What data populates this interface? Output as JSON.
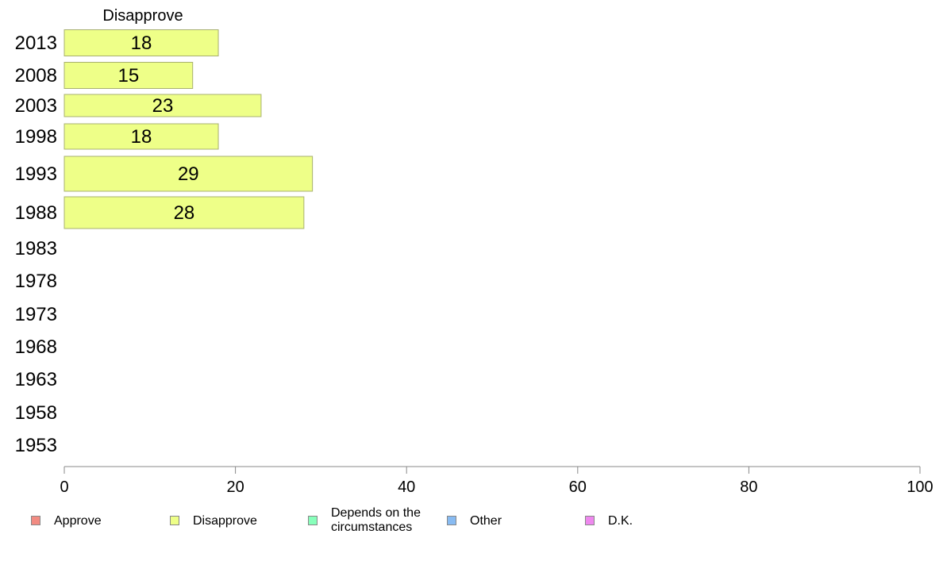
{
  "chart_data": {
    "type": "bar",
    "orientation": "horizontal",
    "stacked": true,
    "categories": [
      "2013",
      "2008",
      "2003",
      "1998",
      "1993",
      "1988",
      "1983",
      "1978",
      "1973",
      "1968",
      "1963",
      "1958",
      "1953"
    ],
    "series": [
      {
        "name": "Approve",
        "color": "#f28b82",
        "values": [
          null,
          null,
          null,
          null,
          null,
          null,
          null,
          null,
          null,
          null,
          null,
          null,
          null
        ]
      },
      {
        "name": "Disapprove",
        "color": "#eeff88",
        "values": [
          18,
          15,
          23,
          18,
          29,
          28,
          null,
          null,
          null,
          null,
          null,
          null,
          null
        ]
      },
      {
        "name": "Depends on the circumstances",
        "color": "#88ffbb",
        "values": [
          null,
          null,
          null,
          null,
          null,
          null,
          null,
          null,
          null,
          null,
          null,
          null,
          null
        ]
      },
      {
        "name": "Other",
        "color": "#88bbf2",
        "values": [
          null,
          null,
          null,
          null,
          null,
          null,
          null,
          null,
          null,
          null,
          null,
          null,
          null
        ]
      },
      {
        "name": "D.K.",
        "color": "#ee88ee",
        "values": [
          null,
          null,
          null,
          null,
          null,
          null,
          null,
          null,
          null,
          null,
          null,
          null,
          null
        ]
      }
    ],
    "column_header": "Disapprove",
    "xlim": [
      0,
      100
    ],
    "xticks": [
      "0",
      "20",
      "40",
      "60",
      "80",
      "100"
    ],
    "grid": false,
    "legend_position": "bottom"
  },
  "legend": {
    "items": [
      {
        "label": "Approve",
        "color": "#f28b82"
      },
      {
        "label": "Disapprove",
        "color": "#eeff88"
      },
      {
        "label": "Depends on the circumstances",
        "color": "#88ffbb"
      },
      {
        "label": "Other",
        "color": "#88bbf2"
      },
      {
        "label": "D.K.",
        "color": "#ee88ee"
      }
    ]
  }
}
